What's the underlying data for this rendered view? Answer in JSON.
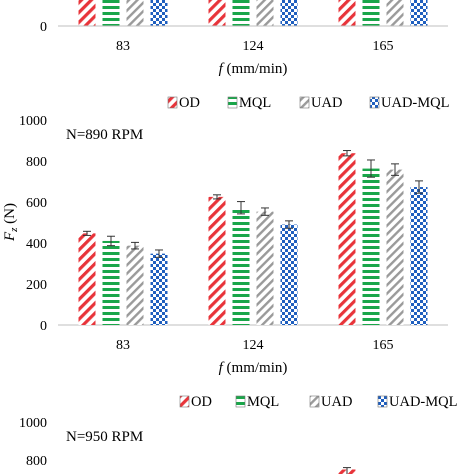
{
  "series_styles": [
    {
      "name": "OD",
      "pattern": "red-diagonal-stripes",
      "color": "#e8343a"
    },
    {
      "name": "MQL",
      "pattern": "green-horizontal-stripes",
      "color": "#1aa64a"
    },
    {
      "name": "UAD",
      "pattern": "gray-diagonal-stripes",
      "color": "#9a9a9a"
    },
    {
      "name": "UAD-MQL",
      "pattern": "blue-checkerboard",
      "color": "#1f5fbf"
    }
  ],
  "chart_data": [
    {
      "type": "bar",
      "annotation": "",
      "categories": [
        "83",
        "124",
        "165"
      ],
      "xlabel_italic": "f",
      "xlabel_rest": " (mm/min)",
      "yticks": [
        "0"
      ],
      "series": [
        {
          "name": "OD",
          "values": [
            null,
            null,
            null
          ]
        },
        {
          "name": "MQL",
          "values": [
            null,
            null,
            null
          ]
        },
        {
          "name": "UAD",
          "values": [
            null,
            null,
            null
          ]
        },
        {
          "name": "UAD-MQL",
          "values": [
            null,
            null,
            null
          ]
        }
      ]
    },
    {
      "type": "bar",
      "annotation": "N=890 RPM",
      "categories": [
        "83",
        "124",
        "165"
      ],
      "xlabel_italic": "f",
      "xlabel_rest": " (mm/min)",
      "ylabel_italic": "F",
      "ylabel_sub": "z",
      "ylabel_rest": " (N)",
      "ylim": [
        0,
        1000
      ],
      "yticks": [
        "0",
        "200",
        "400",
        "600",
        "800",
        "1000"
      ],
      "legend": [
        "OD",
        "MQL",
        "UAD",
        "UAD-MQL"
      ],
      "series": [
        {
          "name": "OD",
          "values": [
            447,
            625,
            838
          ],
          "errors": [
            10,
            10,
            13
          ]
        },
        {
          "name": "MQL",
          "values": [
            410,
            572,
            763
          ],
          "errors": [
            23,
            30,
            42
          ]
        },
        {
          "name": "UAD",
          "values": [
            387,
            553,
            758
          ],
          "errors": [
            16,
            18,
            28
          ]
        },
        {
          "name": "UAD-MQL",
          "values": [
            348,
            490,
            673
          ],
          "errors": [
            18,
            18,
            30
          ]
        }
      ]
    },
    {
      "type": "bar",
      "annotation": "N=950 RPM",
      "yticks": [
        "800",
        "1000"
      ],
      "ylim": [
        0,
        1000
      ],
      "legend": [
        "OD",
        "MQL",
        "UAD",
        "UAD-MQL"
      ],
      "series": [
        {
          "name": "OD",
          "values": [
            null,
            null,
            750
          ],
          "errors": [
            null,
            null,
            10
          ]
        }
      ]
    }
  ]
}
